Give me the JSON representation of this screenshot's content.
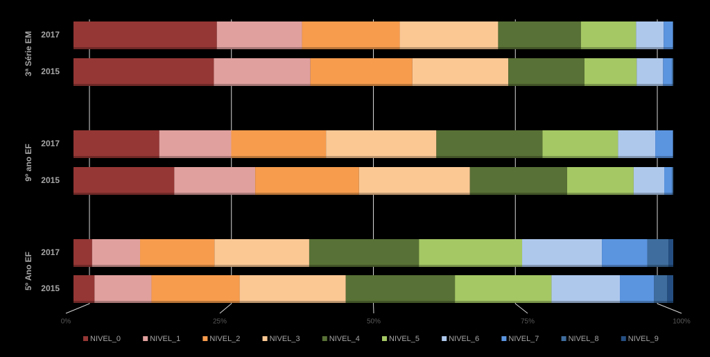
{
  "chart_data": {
    "type": "stacked-bar-horizontal",
    "groups": [
      {
        "name": "3ª Série EM",
        "categories": [
          "2017",
          "2015"
        ]
      },
      {
        "name": "9º ano EF",
        "categories": [
          "2017",
          "2015"
        ]
      },
      {
        "name": "5º Ano EF",
        "categories": [
          "2017",
          "2015"
        ]
      }
    ],
    "xlim": [
      0,
      100
    ],
    "xticks": [
      {
        "value": 0,
        "label": "0%"
      },
      {
        "value": 25,
        "label": "25%"
      },
      {
        "value": 50,
        "label": "50%"
      },
      {
        "value": 75,
        "label": "75%"
      },
      {
        "value": 100,
        "label": "100%"
      }
    ],
    "grid": true,
    "legend": "bottom",
    "series": [
      {
        "name": "NIVEL_0",
        "color": "#953735",
        "values": [
          23.9,
          23.4,
          14.3,
          16.8,
          3.1,
          3.5
        ]
      },
      {
        "name": "NIVEL_1",
        "color": "#e0a09e",
        "values": [
          14.2,
          16.1,
          12.0,
          13.5,
          8.0,
          9.5
        ]
      },
      {
        "name": "NIVEL_2",
        "color": "#f79c4d",
        "values": [
          16.3,
          17.0,
          15.8,
          17.3,
          12.4,
          14.7
        ]
      },
      {
        "name": "NIVEL_3",
        "color": "#fbc894",
        "values": [
          16.4,
          16.0,
          18.4,
          18.5,
          15.8,
          17.7
        ]
      },
      {
        "name": "NIVEL_4",
        "color": "#587136",
        "values": [
          13.8,
          12.7,
          17.7,
          16.2,
          18.3,
          18.2
        ]
      },
      {
        "name": "NIVEL_5",
        "color": "#a5c864",
        "values": [
          9.2,
          8.7,
          12.6,
          11.1,
          17.2,
          16.1
        ]
      },
      {
        "name": "NIVEL_6",
        "color": "#aec8ec",
        "values": [
          4.6,
          4.4,
          6.2,
          5.1,
          13.3,
          11.4
        ]
      },
      {
        "name": "NIVEL_7",
        "color": "#5b95e0",
        "values": [
          1.5,
          1.5,
          2.9,
          1.3,
          7.6,
          5.7
        ]
      },
      {
        "name": "NIVEL_8",
        "color": "#3f6d9e",
        "values": [
          0.1,
          0.2,
          0.1,
          0.2,
          3.5,
          2.2
        ]
      },
      {
        "name": "NIVEL_9",
        "color": "#254f82",
        "values": [
          0,
          0,
          0,
          0,
          0.8,
          1.0
        ]
      }
    ]
  }
}
